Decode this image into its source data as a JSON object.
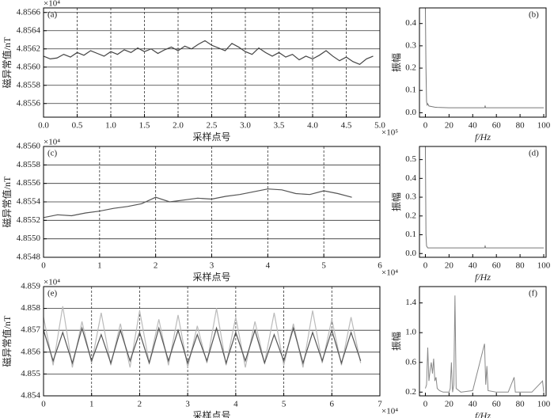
{
  "chart_data": [
    {
      "type": "line",
      "panel_label": "(a)",
      "xlabel": "采样点号",
      "ylabel": "磁异常值/nT",
      "x_multiplier": "×10⁵",
      "y_multiplier": "×10⁴",
      "grid": true,
      "xlim": [
        0,
        5
      ],
      "ylim": [
        4.85545,
        4.85665
      ],
      "xticks": [
        {
          "value": 0,
          "label": "0.0"
        },
        0.5,
        {
          "value": 1,
          "label": "1.0"
        },
        1.5,
        {
          "value": 2,
          "label": "2.0"
        },
        2.5,
        {
          "value": 3,
          "label": "3.0"
        },
        3.5,
        {
          "value": 4,
          "label": "4.0"
        },
        4.5,
        {
          "value": 5,
          "label": "5.0"
        }
      ],
      "yticks": [
        4.8556,
        4.8558,
        {
          "value": 4.856,
          "label": "4.8560"
        },
        4.8562,
        4.8564,
        4.8566
      ],
      "series": [
        {
          "color": "#444444",
          "x": [
            0,
            0.1,
            0.2,
            0.3,
            0.4,
            0.5,
            0.6,
            0.7,
            0.8,
            0.9,
            1,
            1.1,
            1.2,
            1.3,
            1.4,
            1.5,
            1.6,
            1.7,
            1.8,
            1.9,
            2,
            2.1,
            2.2,
            2.3,
            2.4,
            2.5,
            2.6,
            2.7,
            2.8,
            2.9,
            3,
            3.1,
            3.2,
            3.3,
            3.4,
            3.5,
            3.6,
            3.7,
            3.8,
            3.9,
            4,
            4.1,
            4.2,
            4.3,
            4.4,
            4.5,
            4.6,
            4.7,
            4.8,
            4.9
          ],
          "values": [
            4.85612,
            4.85609,
            4.8561,
            4.85614,
            4.85611,
            4.85616,
            4.85613,
            4.85618,
            4.85615,
            4.85612,
            4.85617,
            4.85614,
            4.85619,
            4.85616,
            4.85621,
            4.85617,
            4.8562,
            4.85615,
            4.85619,
            4.85622,
            4.85618,
            4.85623,
            4.8562,
            4.85625,
            4.85629,
            4.85624,
            4.85621,
            4.85618,
            4.85626,
            4.85622,
            4.85617,
            4.85614,
            4.85621,
            4.85616,
            4.85612,
            4.85616,
            4.85611,
            4.85614,
            4.85608,
            4.85612,
            4.85609,
            4.85613,
            4.85618,
            4.85612,
            4.85607,
            4.85611,
            4.85606,
            4.85603,
            4.85609,
            4.85612
          ]
        }
      ]
    },
    {
      "type": "line",
      "panel_label": "(b)",
      "xlabel": "f/Hz",
      "ylabel": "振幅",
      "grid": false,
      "xlim": [
        -5,
        102
      ],
      "ylim": [
        -0.02,
        0.47
      ],
      "xticks": [
        0,
        20,
        40,
        60,
        80,
        100
      ],
      "yticks": [
        {
          "value": 0,
          "label": "0.0"
        },
        0.1,
        0.2,
        0.3,
        0.4
      ],
      "series": [
        {
          "color": "#777777",
          "x": [
            0,
            0.5,
            1,
            1.5,
            2,
            3,
            5,
            8,
            10,
            20,
            30,
            40,
            50,
            50.5,
            51,
            60,
            70,
            80,
            90,
            100
          ],
          "values": [
            0.47,
            0.2,
            0.05,
            0.035,
            0.04,
            0.03,
            0.028,
            0.025,
            0.024,
            0.022,
            0.022,
            0.022,
            0.022,
            0.03,
            0.022,
            0.022,
            0.022,
            0.022,
            0.022,
            0.022
          ]
        }
      ]
    },
    {
      "type": "line",
      "panel_label": "(c)",
      "xlabel": "采样点号",
      "ylabel": "磁异常值/nT",
      "x_multiplier": "×10⁴",
      "y_multiplier": "×10⁴",
      "grid": true,
      "xlim": [
        0,
        6
      ],
      "ylim": [
        4.8548,
        4.856
      ],
      "xticks": [
        0,
        1,
        2,
        3,
        4,
        5,
        6
      ],
      "yticks": [
        4.8548,
        {
          "value": 4.855,
          "label": "4.8550"
        },
        4.8552,
        4.8554,
        4.8556,
        4.8558,
        {
          "value": 4.856,
          "label": "4.8560"
        }
      ],
      "series": [
        {
          "color": "#555555",
          "x": [
            0,
            0.25,
            0.5,
            0.75,
            1,
            1.25,
            1.5,
            1.75,
            2,
            2.25,
            2.5,
            2.75,
            3,
            3.25,
            3.5,
            3.75,
            4,
            4.25,
            4.5,
            4.75,
            5,
            5.25,
            5.5
          ],
          "values": [
            4.85523,
            4.85526,
            4.85525,
            4.85528,
            4.8553,
            4.85533,
            4.85535,
            4.85538,
            4.85545,
            4.8554,
            4.85542,
            4.85544,
            4.85543,
            4.85546,
            4.85548,
            4.85551,
            4.85554,
            4.85553,
            4.85549,
            4.85548,
            4.85552,
            4.85549,
            4.85545
          ]
        }
      ]
    },
    {
      "type": "line",
      "panel_label": "(d)",
      "xlabel": "f/Hz",
      "ylabel": "振幅",
      "grid": false,
      "xlim": [
        -5,
        102
      ],
      "ylim": [
        -0.02,
        0.57
      ],
      "xticks": [
        0,
        20,
        40,
        60,
        80,
        100
      ],
      "yticks": [
        {
          "value": 0,
          "label": "0.0"
        },
        0.1,
        0.2,
        0.3,
        0.4,
        0.5
      ],
      "series": [
        {
          "color": "#777777",
          "x": [
            0,
            0.5,
            1,
            1.5,
            2,
            3,
            5,
            8,
            10,
            20,
            30,
            40,
            50,
            50.5,
            51,
            60,
            70,
            80,
            90,
            100
          ],
          "values": [
            0.57,
            0.1,
            0.04,
            0.035,
            0.03,
            0.03,
            0.03,
            0.03,
            0.03,
            0.03,
            0.03,
            0.03,
            0.03,
            0.04,
            0.03,
            0.03,
            0.03,
            0.03,
            0.03,
            0.03
          ]
        }
      ]
    },
    {
      "type": "line",
      "panel_label": "(e)",
      "xlabel": "采样点号",
      "ylabel": "磁异常值/nT",
      "x_multiplier": "×10⁴",
      "y_multiplier": "×10⁴",
      "grid": true,
      "xlim": [
        0,
        7
      ],
      "ylim": [
        4.854,
        4.859
      ],
      "xticks": [
        0,
        1,
        2,
        3,
        4,
        5,
        6,
        7
      ],
      "yticks": [
        4.854,
        4.855,
        4.856,
        4.857,
        4.858,
        4.859
      ],
      "x": [
        0,
        0.2,
        0.4,
        0.6,
        0.8,
        1,
        1.2,
        1.4,
        1.6,
        1.8,
        2,
        2.2,
        2.4,
        2.6,
        2.8,
        3,
        3.2,
        3.4,
        3.6,
        3.8,
        4,
        4.2,
        4.4,
        4.6,
        4.8,
        5,
        5.2,
        5.4,
        5.6,
        5.8,
        6,
        6.2,
        6.4,
        6.6
      ],
      "series": [
        {
          "color": "#bbbbbb",
          "values": [
            4.8576,
            4.8554,
            4.8581,
            4.8553,
            4.8574,
            4.8555,
            4.8578,
            4.8554,
            4.8573,
            4.8553,
            4.8579,
            4.8555,
            4.8575,
            4.8554,
            4.8577,
            4.8553,
            4.8572,
            4.8555,
            4.858,
            4.8554,
            4.8576,
            4.8553,
            4.8574,
            4.8555,
            4.8578,
            4.8554,
            4.8573,
            4.8553,
            4.8579,
            4.8555,
            4.8575,
            4.8554,
            4.8576,
            4.8555
          ]
        },
        {
          "color": "#555555",
          "values": [
            4.857,
            4.8556,
            4.8569,
            4.8555,
            4.8571,
            4.8556,
            4.8568,
            4.8555,
            4.857,
            4.8556,
            4.8569,
            4.8555,
            4.8571,
            4.8556,
            4.857,
            4.8555,
            4.8568,
            4.8556,
            4.8571,
            4.8555,
            4.8569,
            4.8556,
            4.857,
            4.8555,
            4.8568,
            4.8556,
            4.8571,
            4.8555,
            4.8569,
            4.8556,
            4.857,
            4.8555,
            4.8569,
            4.8556
          ]
        }
      ]
    },
    {
      "type": "line",
      "panel_label": "(f)",
      "xlabel": "f/Hz",
      "ylabel": "振幅",
      "grid": false,
      "xlim": [
        -5,
        102
      ],
      "ylim": [
        0.15,
        1.62
      ],
      "xticks": [
        0,
        20,
        40,
        60,
        80,
        100
      ],
      "yticks": [
        0.2,
        0.6,
        {
          "value": 1,
          "label": "1.0"
        },
        1.4
      ],
      "series": [
        {
          "color": "#888888",
          "x": [
            0,
            1,
            2,
            3,
            4,
            5,
            6,
            7,
            8,
            9,
            10,
            12,
            15,
            20,
            21,
            22,
            23,
            24,
            25,
            26,
            30,
            40,
            50,
            51,
            52,
            53,
            60,
            70,
            75,
            76,
            80,
            90,
            99,
            100
          ],
          "values": [
            0.25,
            0.3,
            0.8,
            0.35,
            0.5,
            0.6,
            0.45,
            0.65,
            0.35,
            0.4,
            0.25,
            0.22,
            0.2,
            0.2,
            0.25,
            0.6,
            0.2,
            0.3,
            1.5,
            0.25,
            0.2,
            0.22,
            0.85,
            0.3,
            0.55,
            0.22,
            0.2,
            0.2,
            0.4,
            0.2,
            0.2,
            0.2,
            0.35,
            0.2
          ]
        }
      ]
    }
  ]
}
